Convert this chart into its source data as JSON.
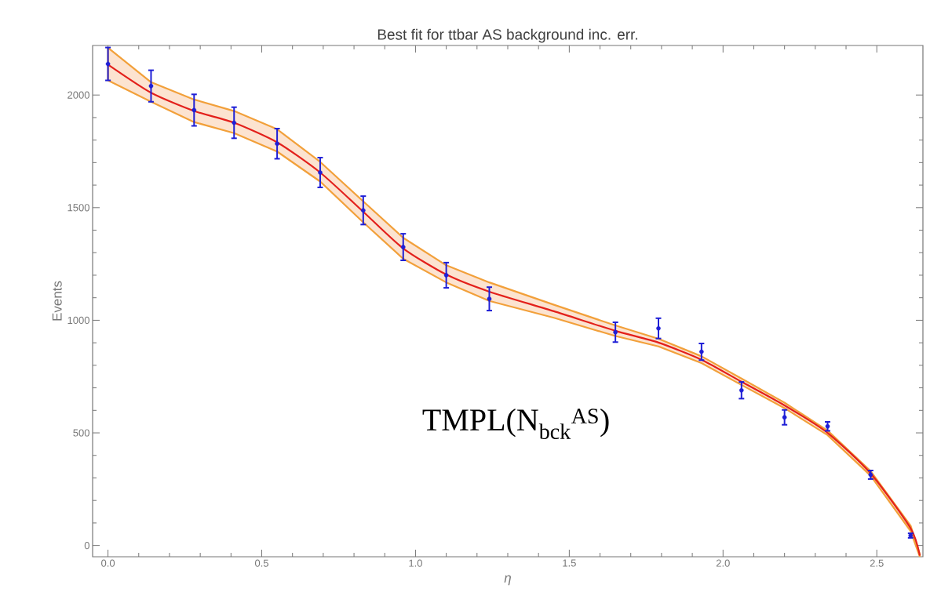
{
  "chart_data": {
    "type": "line",
    "title": "Best fit for ttbar AS background inc. err.",
    "xlabel": "η",
    "ylabel": "Events",
    "annotations": [
      "TMPL(N$_{bck}$$^{AS}$)"
    ],
    "xlim": [
      -0.05,
      2.65
    ],
    "ylim": [
      -50,
      2220
    ],
    "xticks": [
      {
        "value": 0,
        "label": "0.0"
      },
      {
        "value": 0.5,
        "label": "0.5"
      },
      {
        "value": 1,
        "label": "1.0"
      },
      {
        "value": 1.5,
        "label": "1.5"
      },
      {
        "value": 2,
        "label": "2.0"
      },
      {
        "value": 2.5,
        "label": "2.5"
      }
    ],
    "yticks": [
      0,
      500,
      1000,
      1500,
      2000
    ],
    "series": [
      {
        "color": "#e3201b",
        "x": [
          0,
          0.14,
          0.28,
          0.41,
          0.55,
          0.69,
          0.83,
          0.96,
          1.1,
          1.24,
          1.45,
          1.65,
          1.79,
          1.93,
          2.06,
          2.2,
          2.34,
          2.48,
          2.61,
          2.64
        ],
        "values": [
          2135,
          2010,
          1929,
          1877,
          1790,
          1656,
          1482,
          1319,
          1203,
          1127,
          1040,
          953,
          901,
          825,
          727,
          622,
          500,
          320,
          76,
          -45
        ],
        "lower": [
          2065,
          1970,
          1880,
          1831,
          1749,
          1616,
          1435,
          1273,
          1168,
          1086,
          1011,
          930,
          884,
          810,
          713,
          610,
          490,
          310,
          64,
          -50
        ],
        "upper": [
          2210,
          2057,
          1980,
          1929,
          1848,
          1703,
          1528,
          1366,
          1244,
          1168,
          1069,
          977,
          918,
          840,
          741,
          634,
          510,
          330,
          88,
          -40
        ]
      },
      {
        "type": "scatter",
        "marker": "circle",
        "color": "#1f1fd6",
        "x": [
          0,
          0.14,
          0.28,
          0.41,
          0.55,
          0.69,
          0.83,
          0.96,
          1.1,
          1.24,
          1.65,
          1.79,
          1.93,
          2.06,
          2.2,
          2.34,
          2.48,
          2.61
        ],
        "values": [
          2138,
          2040,
          1933,
          1877,
          1784,
          1656,
          1488,
          1325,
          1200,
          1095,
          947,
          964,
          860,
          689,
          569,
          529,
          314,
          44
        ],
        "errors": [
          73,
          70,
          70,
          69,
          67,
          66,
          63,
          59,
          56,
          52,
          44,
          45,
          37,
          37,
          33,
          20,
          19,
          10
        ]
      }
    ]
  }
}
